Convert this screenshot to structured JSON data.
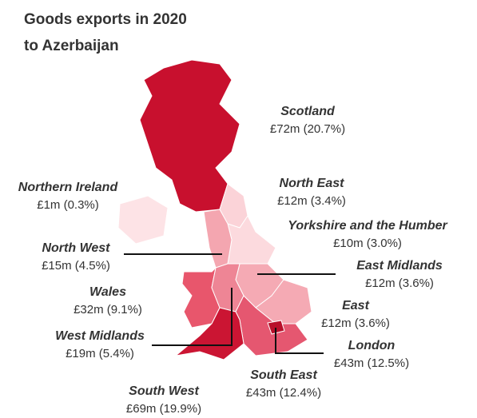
{
  "title": [
    "Goods exports in 2020",
    "to Azerbaijan"
  ],
  "regions": [
    {
      "name": "Scotland",
      "label": "£72m (20.7%)",
      "color": "#c8102e"
    },
    {
      "name": "Northern Ireland",
      "label": "£1m (0.3%)",
      "color": "#fde3e6"
    },
    {
      "name": "North East",
      "label": "£12m (3.4%)",
      "color": "#fbd3d8"
    },
    {
      "name": "Yorkshire and the Humber",
      "label": "£10m (3.0%)",
      "color": "#fcdade"
    },
    {
      "name": "North West",
      "label": "£15m (4.5%)",
      "color": "#f4a6b0"
    },
    {
      "name": "East Midlands",
      "label": "£12m (3.6%)",
      "color": "#f5aab4"
    },
    {
      "name": "Wales",
      "label": "£32m (9.1%)",
      "color": "#e8566c"
    },
    {
      "name": "East",
      "label": "£12m (3.6%)",
      "color": "#f5aab4"
    },
    {
      "name": "West Midlands",
      "label": "£19m (5.4%)",
      "color": "#ee8595"
    },
    {
      "name": "London",
      "label": "£43m (12.5%)",
      "color": "#b80f2a"
    },
    {
      "name": "South East",
      "label": "£43m (12.4%)",
      "color": "#e55770"
    },
    {
      "name": "South West",
      "label": "£69m (19.9%)",
      "color": "#cb1533"
    }
  ]
}
